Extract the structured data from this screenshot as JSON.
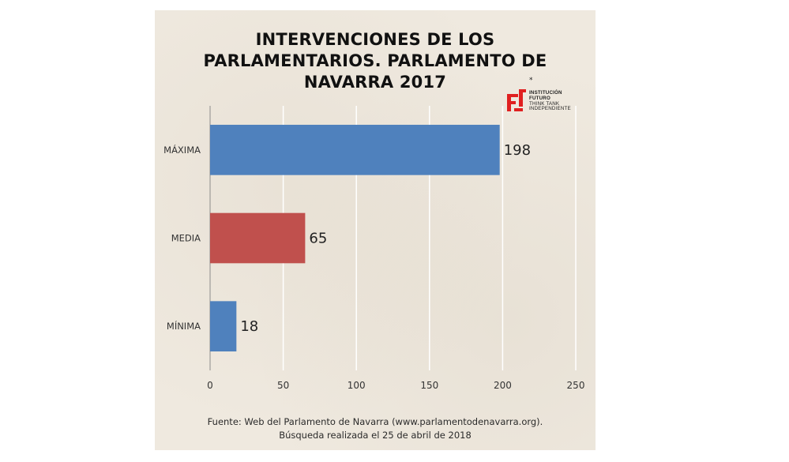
{
  "title_lines": [
    "INTERVENCIONES  DE LOS",
    "PARLAMENTARIOS. PARLAMENTO DE",
    "NAVARRA 2017"
  ],
  "logo": {
    "star": "*",
    "lines": [
      "INSTITUCIÓN",
      "FUTURO",
      "THINK TANK",
      "INDEPENDIENTE"
    ],
    "color": "#e02020"
  },
  "source_lines": [
    "Fuente: Web del Parlamento de Navarra (www.parlamentodenavarra.org).",
    "Búsqueda realizada el 25 de abril de 2018"
  ],
  "chart_data": {
    "type": "bar",
    "orientation": "horizontal",
    "categories": [
      "MÁXIMA",
      "MEDIA",
      "MÍNIMA"
    ],
    "values": [
      198,
      65,
      18
    ],
    "bar_colors": [
      "#4f81bd",
      "#c0504d",
      "#4f81bd"
    ],
    "xlim": [
      0,
      250
    ],
    "xticks": [
      0,
      50,
      100,
      150,
      200,
      250
    ],
    "grid": true,
    "legend": "none",
    "data_labels": true
  }
}
